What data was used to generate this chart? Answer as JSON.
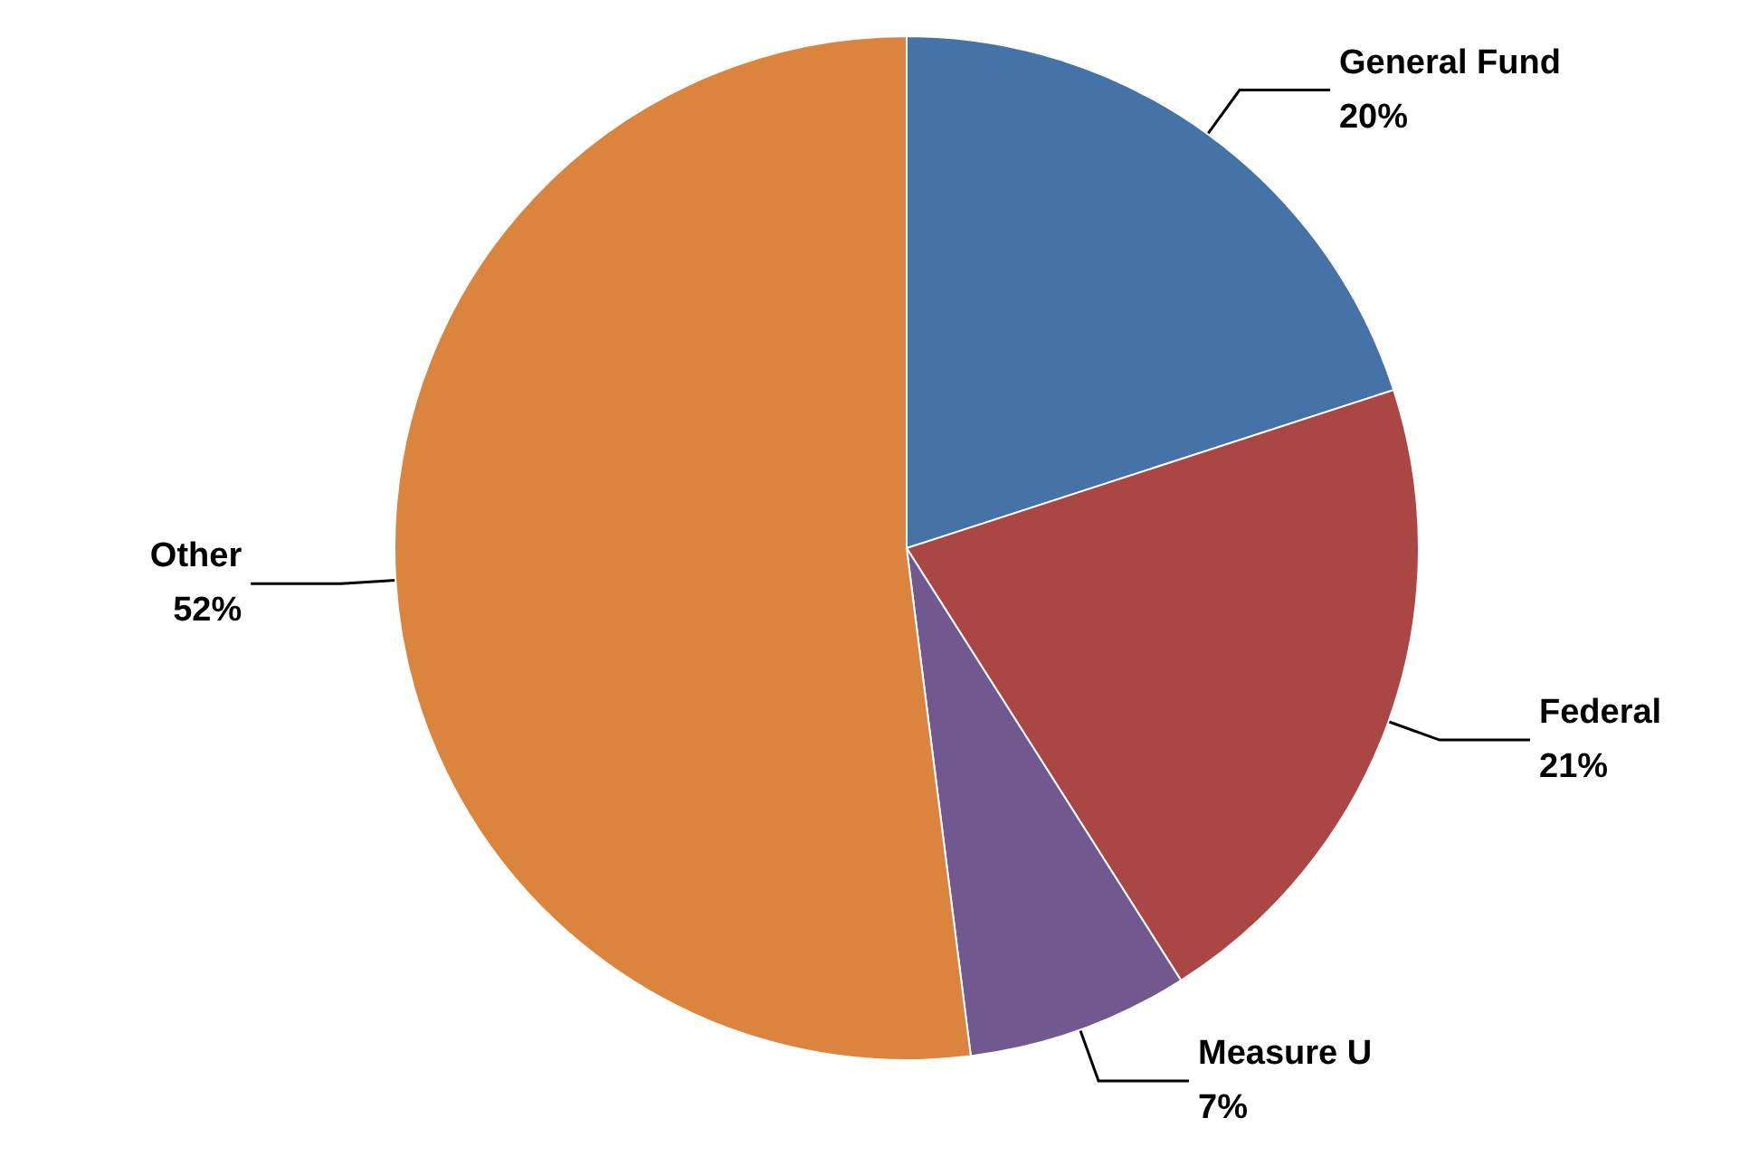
{
  "chart_data": {
    "type": "pie",
    "categories": [
      "General Fund",
      "Federal",
      "Measure U",
      "Other"
    ],
    "values": [
      20,
      21,
      7,
      52
    ],
    "value_labels": [
      "20%",
      "21%",
      "7%",
      "52%"
    ],
    "colors": [
      "#4572a7",
      "#aa4643",
      "#71588f",
      "#db843d"
    ],
    "legend": false
  }
}
